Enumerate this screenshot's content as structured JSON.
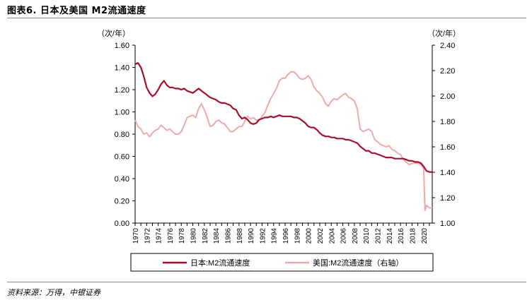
{
  "header": {
    "title": "图表6. 日本及美国 M2流通速度"
  },
  "footer": {
    "source": "资料来源：万得，中银证券"
  },
  "chart_data": {
    "type": "line",
    "title": "图表6. 日本及美国 M2流通速度",
    "left_axis_unit": "（次/年）",
    "right_axis_unit": "（次/年）",
    "xlim": [
      1970,
      2021.5
    ],
    "ylim_left": [
      0,
      1.6
    ],
    "ylim_right": [
      1.0,
      2.4
    ],
    "left_ticks": [
      "0.00",
      "0.20",
      "0.40",
      "0.60",
      "0.80",
      "1.00",
      "1.20",
      "1.40",
      "1.60"
    ],
    "right_ticks": [
      "1.00",
      "1.20",
      "1.40",
      "1.60",
      "1.80",
      "2.00",
      "2.20",
      "2.40"
    ],
    "x_ticks": [
      "1970",
      "1972",
      "1974",
      "1976",
      "1978",
      "1980",
      "1982",
      "1984",
      "1986",
      "1988",
      "1990",
      "1992",
      "1994",
      "1996",
      "1998",
      "2000",
      "2002",
      "2004",
      "2006",
      "2008",
      "2010",
      "2012",
      "2014",
      "2016",
      "2018",
      "2020"
    ],
    "grid": false,
    "legend_position": "bottom",
    "series": [
      {
        "name": "日本:M2流通速度",
        "axis": "left",
        "color": "#a50f2d",
        "points": [
          [
            1970.0,
            1.43
          ],
          [
            1970.5,
            1.44
          ],
          [
            1971.0,
            1.4
          ],
          [
            1971.5,
            1.32
          ],
          [
            1972.0,
            1.22
          ],
          [
            1972.5,
            1.17
          ],
          [
            1973.0,
            1.14
          ],
          [
            1973.5,
            1.16
          ],
          [
            1974.0,
            1.2
          ],
          [
            1974.5,
            1.25
          ],
          [
            1975.0,
            1.28
          ],
          [
            1975.5,
            1.24
          ],
          [
            1976.0,
            1.22
          ],
          [
            1976.5,
            1.22
          ],
          [
            1977.0,
            1.21
          ],
          [
            1977.5,
            1.21
          ],
          [
            1978.0,
            1.2
          ],
          [
            1978.5,
            1.21
          ],
          [
            1979.0,
            1.19
          ],
          [
            1979.5,
            1.18
          ],
          [
            1980.0,
            1.17
          ],
          [
            1980.5,
            1.19
          ],
          [
            1981.0,
            1.21
          ],
          [
            1981.5,
            1.19
          ],
          [
            1982.0,
            1.17
          ],
          [
            1982.5,
            1.15
          ],
          [
            1983.0,
            1.13
          ],
          [
            1983.5,
            1.12
          ],
          [
            1984.0,
            1.11
          ],
          [
            1984.5,
            1.09
          ],
          [
            1985.0,
            1.08
          ],
          [
            1985.5,
            1.08
          ],
          [
            1986.0,
            1.07
          ],
          [
            1986.5,
            1.06
          ],
          [
            1987.0,
            1.03
          ],
          [
            1987.5,
            1.02
          ],
          [
            1988.0,
            0.97
          ],
          [
            1988.5,
            0.94
          ],
          [
            1989.0,
            0.95
          ],
          [
            1989.5,
            0.93
          ],
          [
            1990.0,
            0.9
          ],
          [
            1990.5,
            0.89
          ],
          [
            1991.0,
            0.9
          ],
          [
            1991.5,
            0.93
          ],
          [
            1992.0,
            0.94
          ],
          [
            1992.5,
            0.95
          ],
          [
            1993.0,
            0.95
          ],
          [
            1993.5,
            0.96
          ],
          [
            1994.0,
            0.95
          ],
          [
            1994.5,
            0.96
          ],
          [
            1995.0,
            0.97
          ],
          [
            1995.5,
            0.96
          ],
          [
            1996.0,
            0.96
          ],
          [
            1996.5,
            0.96
          ],
          [
            1997.0,
            0.96
          ],
          [
            1997.5,
            0.95
          ],
          [
            1998.0,
            0.95
          ],
          [
            1998.5,
            0.94
          ],
          [
            1999.0,
            0.92
          ],
          [
            1999.5,
            0.9
          ],
          [
            2000.0,
            0.87
          ],
          [
            2000.5,
            0.86
          ],
          [
            2001.0,
            0.86
          ],
          [
            2001.5,
            0.84
          ],
          [
            2002.0,
            0.81
          ],
          [
            2002.5,
            0.79
          ],
          [
            2003.0,
            0.78
          ],
          [
            2003.5,
            0.78
          ],
          [
            2004.0,
            0.77
          ],
          [
            2004.5,
            0.77
          ],
          [
            2005.0,
            0.76
          ],
          [
            2005.5,
            0.76
          ],
          [
            2006.0,
            0.76
          ],
          [
            2006.5,
            0.75
          ],
          [
            2007.0,
            0.75
          ],
          [
            2007.5,
            0.74
          ],
          [
            2008.0,
            0.73
          ],
          [
            2008.5,
            0.72
          ],
          [
            2009.0,
            0.69
          ],
          [
            2009.5,
            0.67
          ],
          [
            2010.0,
            0.65
          ],
          [
            2010.5,
            0.65
          ],
          [
            2011.0,
            0.63
          ],
          [
            2011.5,
            0.63
          ],
          [
            2012.0,
            0.62
          ],
          [
            2012.5,
            0.61
          ],
          [
            2013.0,
            0.6
          ],
          [
            2013.5,
            0.59
          ],
          [
            2014.0,
            0.59
          ],
          [
            2014.5,
            0.59
          ],
          [
            2015.0,
            0.58
          ],
          [
            2015.5,
            0.58
          ],
          [
            2016.0,
            0.58
          ],
          [
            2016.5,
            0.58
          ],
          [
            2017.0,
            0.57
          ],
          [
            2017.5,
            0.56
          ],
          [
            2018.0,
            0.56
          ],
          [
            2018.5,
            0.55
          ],
          [
            2019.0,
            0.55
          ],
          [
            2019.5,
            0.54
          ],
          [
            2020.0,
            0.51
          ],
          [
            2020.5,
            0.47
          ],
          [
            2021.0,
            0.46
          ],
          [
            2021.5,
            0.46
          ]
        ]
      },
      {
        "name": "美国:M2流通速度（右轴）",
        "axis": "right",
        "color": "#eeaaaa",
        "points": [
          [
            1970.0,
            1.81
          ],
          [
            1970.5,
            1.76
          ],
          [
            1971.0,
            1.74
          ],
          [
            1971.5,
            1.7
          ],
          [
            1972.0,
            1.71
          ],
          [
            1972.5,
            1.68
          ],
          [
            1973.0,
            1.71
          ],
          [
            1973.5,
            1.73
          ],
          [
            1974.0,
            1.74
          ],
          [
            1974.5,
            1.77
          ],
          [
            1975.0,
            1.75
          ],
          [
            1975.5,
            1.73
          ],
          [
            1976.0,
            1.74
          ],
          [
            1976.5,
            1.72
          ],
          [
            1977.0,
            1.7
          ],
          [
            1977.5,
            1.7
          ],
          [
            1978.0,
            1.72
          ],
          [
            1978.5,
            1.77
          ],
          [
            1979.0,
            1.83
          ],
          [
            1979.5,
            1.84
          ],
          [
            1980.0,
            1.85
          ],
          [
            1980.5,
            1.83
          ],
          [
            1981.0,
            1.9
          ],
          [
            1981.5,
            1.94
          ],
          [
            1982.0,
            1.89
          ],
          [
            1982.5,
            1.83
          ],
          [
            1983.0,
            1.76
          ],
          [
            1983.5,
            1.77
          ],
          [
            1984.0,
            1.8
          ],
          [
            1984.5,
            1.81
          ],
          [
            1985.0,
            1.79
          ],
          [
            1985.5,
            1.78
          ],
          [
            1986.0,
            1.75
          ],
          [
            1986.5,
            1.72
          ],
          [
            1987.0,
            1.72
          ],
          [
            1987.5,
            1.74
          ],
          [
            1988.0,
            1.76
          ],
          [
            1988.5,
            1.76
          ],
          [
            1989.0,
            1.8
          ],
          [
            1989.5,
            1.84
          ],
          [
            1990.0,
            1.82
          ],
          [
            1990.5,
            1.83
          ],
          [
            1991.0,
            1.81
          ],
          [
            1991.5,
            1.81
          ],
          [
            1992.0,
            1.84
          ],
          [
            1992.5,
            1.87
          ],
          [
            1993.0,
            1.93
          ],
          [
            1993.5,
            1.98
          ],
          [
            1994.0,
            2.02
          ],
          [
            1994.5,
            2.06
          ],
          [
            1995.0,
            2.12
          ],
          [
            1995.5,
            2.14
          ],
          [
            1996.0,
            2.14
          ],
          [
            1996.5,
            2.17
          ],
          [
            1997.0,
            2.19
          ],
          [
            1997.5,
            2.19
          ],
          [
            1998.0,
            2.17
          ],
          [
            1998.5,
            2.14
          ],
          [
            1999.0,
            2.13
          ],
          [
            1999.5,
            2.14
          ],
          [
            2000.0,
            2.16
          ],
          [
            2000.5,
            2.13
          ],
          [
            2001.0,
            2.07
          ],
          [
            2001.5,
            2.04
          ],
          [
            2002.0,
            2.02
          ],
          [
            2002.5,
            1.99
          ],
          [
            2003.0,
            1.94
          ],
          [
            2003.5,
            1.92
          ],
          [
            2004.0,
            1.96
          ],
          [
            2004.5,
            1.98
          ],
          [
            2005.0,
            1.97
          ],
          [
            2005.5,
            1.99
          ],
          [
            2006.0,
            2.01
          ],
          [
            2006.5,
            2.02
          ],
          [
            2007.0,
            1.99
          ],
          [
            2007.5,
            1.98
          ],
          [
            2008.0,
            1.96
          ],
          [
            2008.5,
            1.9
          ],
          [
            2009.0,
            1.74
          ],
          [
            2009.5,
            1.72
          ],
          [
            2010.0,
            1.73
          ],
          [
            2010.5,
            1.74
          ],
          [
            2011.0,
            1.72
          ],
          [
            2011.5,
            1.66
          ],
          [
            2012.0,
            1.64
          ],
          [
            2012.5,
            1.62
          ],
          [
            2013.0,
            1.61
          ],
          [
            2013.5,
            1.6
          ],
          [
            2014.0,
            1.61
          ],
          [
            2014.5,
            1.58
          ],
          [
            2015.0,
            1.57
          ],
          [
            2015.5,
            1.55
          ],
          [
            2016.0,
            1.54
          ],
          [
            2016.5,
            1.5
          ],
          [
            2017.0,
            1.48
          ],
          [
            2017.5,
            1.46
          ],
          [
            2018.0,
            1.47
          ],
          [
            2018.5,
            1.47
          ],
          [
            2019.0,
            1.47
          ],
          [
            2019.5,
            1.46
          ],
          [
            2020.0,
            1.43
          ],
          [
            2020.25,
            1.1
          ],
          [
            2020.5,
            1.14
          ],
          [
            2021.0,
            1.12
          ],
          [
            2021.5,
            1.12
          ]
        ]
      }
    ]
  }
}
